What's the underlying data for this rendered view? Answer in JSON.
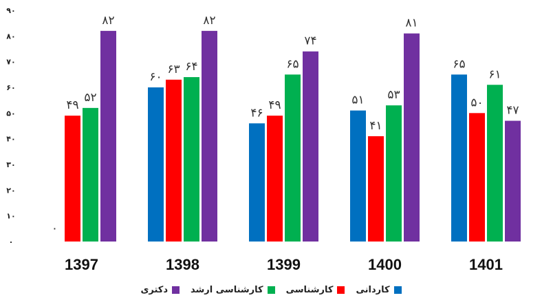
{
  "chart_data": {
    "type": "bar",
    "categories": [
      "1397",
      "1398",
      "1399",
      "1400",
      "1401"
    ],
    "ylim": [
      0,
      90
    ],
    "yticks": [
      0,
      10,
      20,
      30,
      40,
      50,
      60,
      70,
      80,
      90
    ],
    "ytick_labels": [
      "٠",
      "١٠",
      "٢٠",
      "٣٠",
      "۴٠",
      "۵٠",
      "۶٠",
      "٧٠",
      "٨٠",
      "٩٠"
    ],
    "grid": false,
    "legend_position": "bottom",
    "series": [
      {
        "name": "کاردانی",
        "color": "#0070C0",
        "values": [
          0,
          60,
          46,
          51,
          65
        ],
        "labels": [
          "٠",
          "۶٠",
          "۴۶",
          "۵١",
          "۶۵"
        ]
      },
      {
        "name": "کارشناسی",
        "color": "#FF0000",
        "values": [
          49,
          63,
          49,
          41,
          50
        ],
        "labels": [
          "۴٩",
          "۶٣",
          "۴٩",
          "۴١",
          "۵٠"
        ]
      },
      {
        "name": "کارشناسی ارشد",
        "color": "#00B050",
        "values": [
          52,
          64,
          65,
          53,
          61
        ],
        "labels": [
          "۵٢",
          "۶۴",
          "۶۵",
          "۵٣",
          "۶١"
        ]
      },
      {
        "name": "دکتری",
        "color": "#7030A0",
        "values": [
          82,
          82,
          74,
          81,
          47
        ],
        "labels": [
          "٨٢",
          "٨٢",
          "٧۴",
          "٨١",
          "۴٧"
        ]
      }
    ]
  }
}
